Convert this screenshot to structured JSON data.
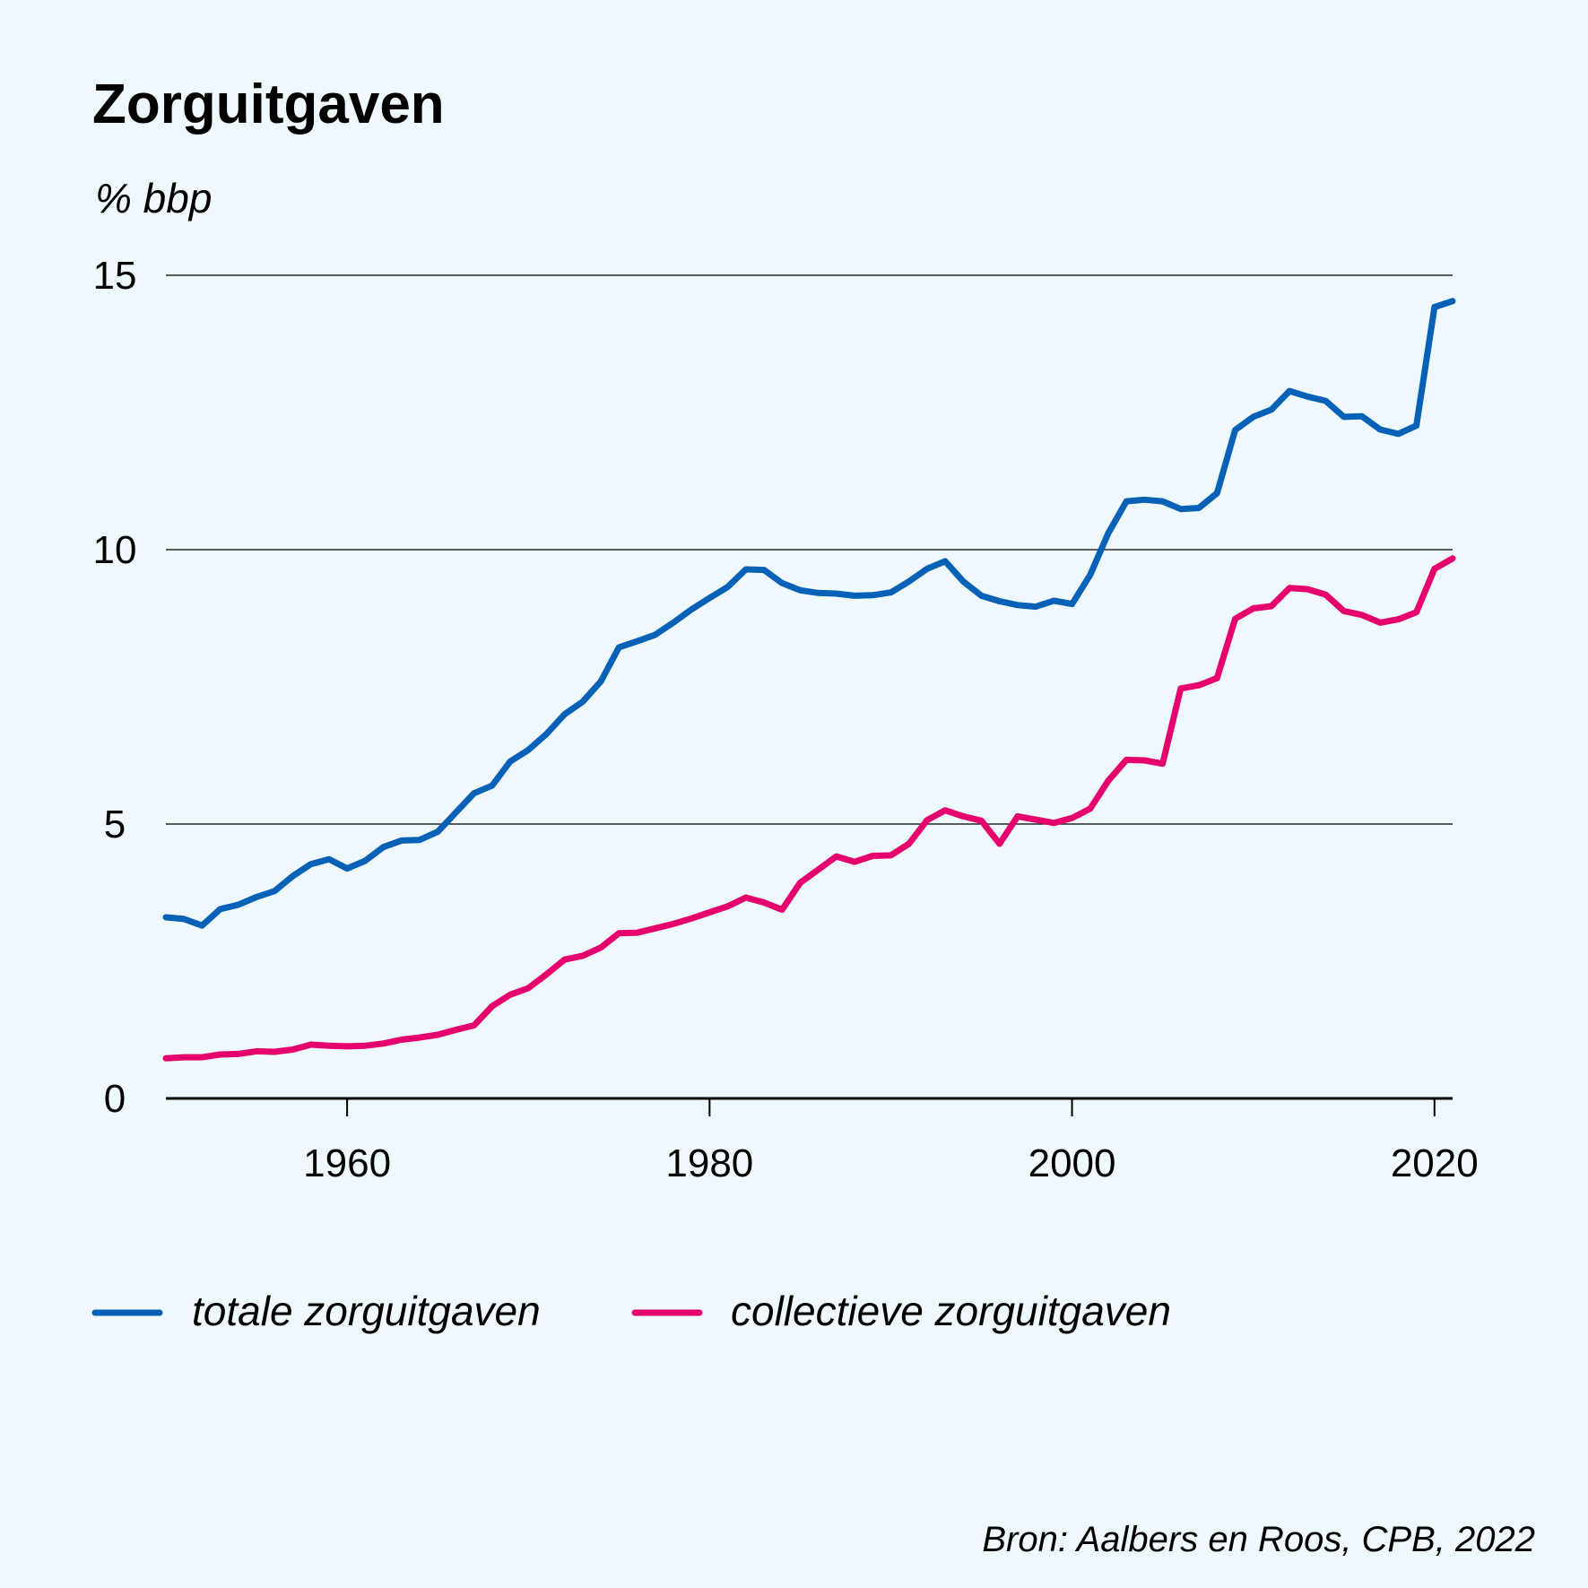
{
  "chart_data": {
    "type": "line",
    "title": "Zorguitgaven",
    "ylabel": "% bbp",
    "xlabel": "",
    "ylim": [
      0,
      15
    ],
    "xlim": [
      1950,
      2021
    ],
    "yticks": [
      0,
      5,
      10,
      15
    ],
    "xticks": [
      1960,
      1980,
      2000,
      2020
    ],
    "grid": true,
    "legend_position": "bottom",
    "colors": {
      "totale": "#0761b7",
      "collectieve": "#e5006e"
    },
    "x": [
      1950,
      1951,
      1952,
      1953,
      1954,
      1955,
      1956,
      1957,
      1958,
      1959,
      1960,
      1961,
      1962,
      1963,
      1964,
      1965,
      1966,
      1967,
      1968,
      1969,
      1970,
      1971,
      1972,
      1973,
      1974,
      1975,
      1976,
      1977,
      1978,
      1979,
      1980,
      1981,
      1982,
      1983,
      1984,
      1985,
      1986,
      1987,
      1988,
      1989,
      1990,
      1991,
      1992,
      1993,
      1994,
      1995,
      1996,
      1997,
      1998,
      1999,
      2000,
      2001,
      2002,
      2003,
      2004,
      2005,
      2006,
      2007,
      2008,
      2009,
      2010,
      2011,
      2012,
      2013,
      2014,
      2015,
      2016,
      2017,
      2018,
      2019,
      2020,
      2021
    ],
    "series": [
      {
        "name": "totale zorguitgaven",
        "color": "#0761b7",
        "values": [
          3.3,
          3.27,
          3.15,
          3.45,
          3.53,
          3.67,
          3.78,
          4.05,
          4.27,
          4.36,
          4.19,
          4.33,
          4.58,
          4.7,
          4.71,
          4.86,
          5.21,
          5.56,
          5.7,
          6.14,
          6.35,
          6.64,
          7.0,
          7.23,
          7.6,
          8.22,
          8.33,
          8.45,
          8.67,
          8.91,
          9.12,
          9.32,
          9.64,
          9.63,
          9.39,
          9.26,
          9.21,
          9.2,
          9.16,
          9.17,
          9.22,
          9.42,
          9.65,
          9.79,
          9.42,
          9.16,
          9.06,
          8.99,
          8.96,
          9.07,
          9.01,
          9.54,
          10.3,
          10.88,
          10.91,
          10.88,
          10.74,
          10.76,
          11.03,
          12.18,
          12.42,
          12.55,
          12.89,
          12.79,
          12.71,
          12.42,
          12.43,
          12.19,
          12.11,
          12.26,
          14.42,
          14.53
        ]
      },
      {
        "name": "collectieve zorguitgaven",
        "color": "#e5006e",
        "values": [
          0.73,
          0.75,
          0.75,
          0.8,
          0.81,
          0.86,
          0.85,
          0.89,
          0.98,
          0.96,
          0.95,
          0.96,
          1.0,
          1.07,
          1.11,
          1.16,
          1.25,
          1.33,
          1.68,
          1.89,
          2.01,
          2.26,
          2.53,
          2.6,
          2.75,
          3.01,
          3.02,
          3.1,
          3.18,
          3.28,
          3.39,
          3.5,
          3.66,
          3.57,
          3.44,
          3.93,
          4.17,
          4.41,
          4.31,
          4.42,
          4.43,
          4.64,
          5.07,
          5.25,
          5.14,
          5.06,
          4.64,
          5.14,
          5.08,
          5.02,
          5.11,
          5.28,
          5.79,
          6.17,
          6.16,
          6.1,
          7.47,
          7.53,
          7.66,
          8.74,
          8.93,
          8.97,
          9.3,
          9.28,
          9.18,
          8.88,
          8.81,
          8.67,
          8.73,
          8.86,
          9.65,
          9.84
        ]
      }
    ],
    "source": "Bron: Aalbers en Roos, CPB, 2022"
  }
}
